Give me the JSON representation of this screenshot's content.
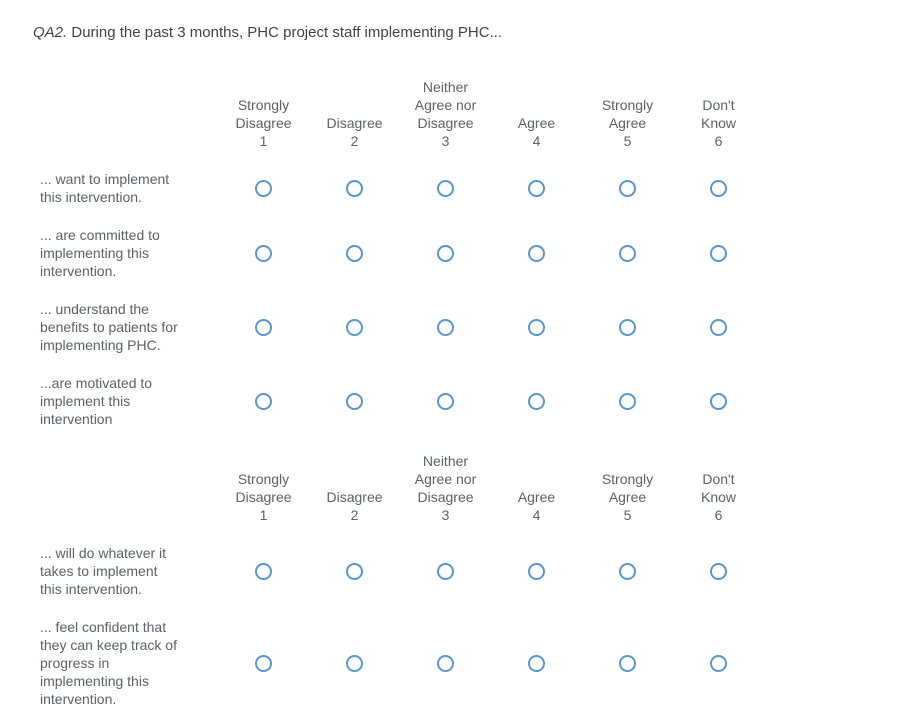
{
  "question": {
    "number": "QA2.",
    "text": "During the past 3 months, PHC project staff implementing PHC..."
  },
  "scale": {
    "columns": [
      {
        "lines": [
          "Strongly",
          "Disagree"
        ],
        "value": "1"
      },
      {
        "lines": [
          "Disagree"
        ],
        "value": "2"
      },
      {
        "lines": [
          "Neither",
          "Agree nor",
          "Disagree"
        ],
        "value": "3"
      },
      {
        "lines": [
          "Agree"
        ],
        "value": "4"
      },
      {
        "lines": [
          "Strongly",
          "Agree"
        ],
        "value": "5"
      },
      {
        "lines": [
          "Don't",
          "Know"
        ],
        "value": "6"
      }
    ]
  },
  "blocks": [
    {
      "rows": [
        {
          "lines": [
            "... want to implement",
            "this intervention."
          ]
        },
        {
          "lines": [
            "... are committed to",
            "implementing this",
            "intervention."
          ]
        },
        {
          "lines": [
            "... understand the",
            "benefits to patients for",
            "implementing PHC."
          ]
        },
        {
          "lines": [
            "...are motivated to",
            "implement this",
            "intervention"
          ]
        }
      ]
    },
    {
      "rows": [
        {
          "lines": [
            "... will do whatever it",
            "takes to implement",
            "this intervention."
          ]
        },
        {
          "lines": [
            "... feel confident that",
            "they can keep track of",
            "progress in",
            "implementing this",
            "intervention."
          ]
        }
      ]
    }
  ],
  "colors": {
    "accent": "#5a96c8",
    "text": "#5a6268",
    "title": "#3f444a",
    "bar": "#14181c",
    "barPatch": "#272c32"
  }
}
